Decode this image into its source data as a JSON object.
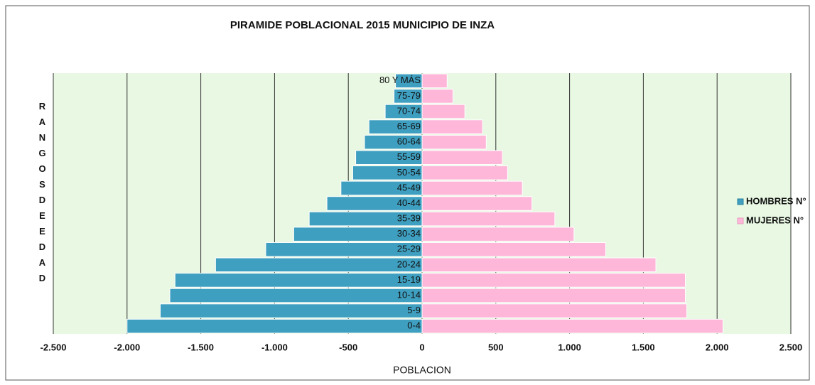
{
  "chart_data": {
    "type": "bar",
    "orientation": "horizontal",
    "title": "PIRAMIDE POBLACIONAL 2015 MUNICIPIO DE INZA",
    "x_label": "POBLACION",
    "y_label": "RANGOSDEEDAD",
    "categories": [
      "80 Y MÁS",
      "75-79",
      "70-74",
      "65-69",
      "60-64",
      "55-59",
      "50-54",
      "45-49",
      "40-44",
      "35-39",
      "30-34",
      "25-29",
      "20-24",
      "15-19",
      "10-14",
      "5-9",
      "0-4"
    ],
    "series": [
      {
        "name": "HOMBRES N°",
        "color": "#3f9fc0",
        "values": [
          -180,
          -190,
          -250,
          -360,
          -390,
          -450,
          -470,
          -550,
          -645,
          -765,
          -870,
          -1060,
          -1400,
          -1675,
          -1710,
          -1775,
          -2000
        ]
      },
      {
        "name": "MUJERES N°",
        "color": "#ffb7d9",
        "values": [
          170,
          210,
          290,
          410,
          435,
          545,
          580,
          680,
          745,
          900,
          1030,
          1245,
          1585,
          1785,
          1785,
          1795,
          2040
        ]
      }
    ],
    "xlim": [
      -2500,
      2500
    ],
    "xticks": [
      {
        "value": -2500,
        "label": "-2.500"
      },
      {
        "value": -2000,
        "label": "-2.000"
      },
      {
        "value": -1500,
        "label": "-1.500"
      },
      {
        "value": -1000,
        "label": "-1.000"
      },
      -500,
      0,
      500,
      {
        "value": 1000,
        "label": "1.000"
      },
      {
        "value": 1500,
        "label": "1.500"
      },
      {
        "value": 2000,
        "label": "2.000"
      },
      {
        "value": 2500,
        "label": "2.500"
      }
    ],
    "grid": true,
    "legend": "right"
  }
}
